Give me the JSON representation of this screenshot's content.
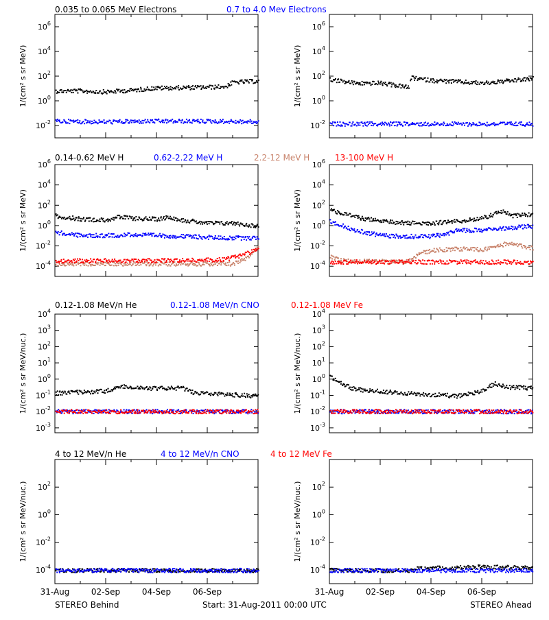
{
  "colors": {
    "black": "#000000",
    "blue": "#0000ff",
    "tan": "#c8826a",
    "red": "#ff0000"
  },
  "legends": {
    "row1": [
      {
        "text": "0.035 to 0.065 MeV Electrons",
        "color": "#000000"
      },
      {
        "text": "0.7 to 4.0 Mev Electrons",
        "color": "#0000ff"
      }
    ],
    "row2": [
      {
        "text": "0.14-0.62 MeV H",
        "color": "#000000"
      },
      {
        "text": "0.62-2.22 MeV H",
        "color": "#0000ff"
      },
      {
        "text": "2.2-12 MeV H",
        "color": "#c8826a"
      },
      {
        "text": "13-100 MeV H",
        "color": "#ff0000"
      }
    ],
    "row3": [
      {
        "text": "0.12-1.08 MeV/n He",
        "color": "#000000"
      },
      {
        "text": "0.12-1.08 MeV/n CNO",
        "color": "#0000ff"
      },
      {
        "text": "0.12-1.08 MeV Fe",
        "color": "#ff0000"
      }
    ],
    "row4": [
      {
        "text": "4 to 12 MeV/n He",
        "color": "#000000"
      },
      {
        "text": "4 to 12 MeV/n CNO",
        "color": "#0000ff"
      },
      {
        "text": "4 to 12 MeV Fe",
        "color": "#ff0000"
      }
    ]
  },
  "ylabels": {
    "row1": "1/(cm² s sr MeV)",
    "row2": "1/(cm² s sr MeV)",
    "row3": "1/(cm² s sr MeV/nuc.)",
    "row4": "1/(cm² s sr MeV/nuc.)"
  },
  "x_tick_labels": [
    "31-Aug",
    "02-Sep",
    "04-Sep",
    "06-Sep"
  ],
  "footer": {
    "left": "STEREO Behind",
    "center": "Start: 31-Aug-2011 00:00 UTC",
    "right": "STEREO Ahead"
  },
  "chart_data": [
    {
      "id": "r1-behind",
      "type": "scatter",
      "log_y": true,
      "ylim": [
        0.001,
        10000000
      ],
      "y_ticks": [
        {
          "v": 1000000,
          "b": "10",
          "e": "6"
        },
        {
          "v": 10000,
          "b": "10",
          "e": "4"
        },
        {
          "v": 100,
          "b": "10",
          "e": "2"
        },
        {
          "v": 1,
          "b": "10",
          "e": "0"
        },
        {
          "v": 0.01,
          "b": "10",
          "e": "-2"
        }
      ],
      "x_range_days": [
        0,
        8
      ],
      "series": [
        {
          "name": "0.035 to 0.065 MeV Electrons",
          "color": "#000000",
          "points": [
            [
              0,
              7
            ],
            [
              1,
              7
            ],
            [
              2,
              6
            ],
            [
              3,
              8
            ],
            [
              3.9,
              12
            ],
            [
              5,
              13
            ],
            [
              6,
              14
            ],
            [
              6.7,
              16
            ],
            [
              7,
              35
            ],
            [
              8,
              45
            ]
          ]
        },
        {
          "name": "0.7 to 4.0 Mev Electrons",
          "color": "#0000ff",
          "points": [
            [
              0,
              0.025
            ],
            [
              2,
              0.022
            ],
            [
              4,
              0.025
            ],
            [
              6,
              0.025
            ],
            [
              8,
              0.022
            ]
          ]
        }
      ]
    },
    {
      "id": "r1-ahead",
      "type": "scatter",
      "log_y": true,
      "ylim": [
        0.001,
        10000000
      ],
      "y_ticks": [
        {
          "v": 1000000,
          "b": "10",
          "e": "6"
        },
        {
          "v": 10000,
          "b": "10",
          "e": "4"
        },
        {
          "v": 100,
          "b": "10",
          "e": "2"
        },
        {
          "v": 1,
          "b": "10",
          "e": "0"
        },
        {
          "v": 0.01,
          "b": "10",
          "e": "-2"
        }
      ],
      "x_range_days": [
        0,
        8
      ],
      "series": [
        {
          "name": "0.035 to 0.065 MeV Electrons",
          "color": "#000000",
          "points": [
            [
              0,
              60
            ],
            [
              1,
              30
            ],
            [
              2,
              30
            ],
            [
              3,
              15
            ],
            [
              3.1,
              12
            ],
            [
              3.2,
              80
            ],
            [
              4,
              50
            ],
            [
              5,
              40
            ],
            [
              6,
              30
            ],
            [
              7,
              45
            ],
            [
              8,
              70
            ]
          ]
        },
        {
          "name": "0.7 to 4.0 Mev Electrons",
          "color": "#0000ff",
          "points": [
            [
              0,
              0.015
            ],
            [
              2,
              0.015
            ],
            [
              4,
              0.015
            ],
            [
              6,
              0.015
            ],
            [
              8,
              0.015
            ]
          ]
        }
      ]
    },
    {
      "id": "r2-behind",
      "type": "scatter",
      "log_y": true,
      "ylim": [
        1e-05,
        1000000
      ],
      "y_ticks": [
        {
          "v": 1000000,
          "b": "10",
          "e": "6"
        },
        {
          "v": 10000,
          "b": "10",
          "e": "4"
        },
        {
          "v": 100,
          "b": "10",
          "e": "2"
        },
        {
          "v": 1,
          "b": "10",
          "e": "0"
        },
        {
          "v": 0.01,
          "b": "10",
          "e": "-2"
        },
        {
          "v": 0.0001,
          "b": "10",
          "e": "-4"
        }
      ],
      "x_range_days": [
        0,
        8
      ],
      "series": [
        {
          "name": "0.14-0.62 MeV H",
          "color": "#000000",
          "points": [
            [
              0,
              10
            ],
            [
              1,
              5
            ],
            [
              2,
              4
            ],
            [
              2.5,
              8
            ],
            [
              3,
              6
            ],
            [
              4,
              5
            ],
            [
              4.5,
              8
            ],
            [
              5,
              4
            ],
            [
              6,
              2
            ],
            [
              7,
              2
            ],
            [
              8,
              1
            ]
          ]
        },
        {
          "name": "0.62-2.22 MeV H",
          "color": "#0000ff",
          "points": [
            [
              0,
              0.25
            ],
            [
              1,
              0.12
            ],
            [
              2,
              0.12
            ],
            [
              3,
              0.15
            ],
            [
              4,
              0.12
            ],
            [
              5,
              0.1
            ],
            [
              6,
              0.08
            ],
            [
              7,
              0.07
            ],
            [
              8,
              0.07
            ]
          ]
        },
        {
          "name": "2.2-12 MeV H",
          "color": "#c8826a",
          "points": [
            [
              0,
              0.0002
            ],
            [
              4,
              0.0002
            ],
            [
              7,
              0.0002
            ],
            [
              7.5,
              0.0006
            ],
            [
              8,
              0.01
            ]
          ]
        },
        {
          "name": "13-100 MeV H",
          "color": "#ff0000",
          "points": [
            [
              0,
              0.0004
            ],
            [
              4,
              0.0004
            ],
            [
              6.5,
              0.0005
            ],
            [
              7,
              0.0008
            ],
            [
              7.5,
              0.002
            ],
            [
              8,
              0.006
            ]
          ]
        }
      ]
    },
    {
      "id": "r2-ahead",
      "type": "scatter",
      "log_y": true,
      "ylim": [
        1e-05,
        1000000
      ],
      "y_ticks": [
        {
          "v": 1000000,
          "b": "10",
          "e": "6"
        },
        {
          "v": 10000,
          "b": "10",
          "e": "4"
        },
        {
          "v": 100,
          "b": "10",
          "e": "2"
        },
        {
          "v": 1,
          "b": "10",
          "e": "0"
        },
        {
          "v": 0.01,
          "b": "10",
          "e": "-2"
        },
        {
          "v": 0.0001,
          "b": "10",
          "e": "-4"
        }
      ],
      "x_range_days": [
        0,
        8
      ],
      "series": [
        {
          "name": "0.14-0.62 MeV H",
          "color": "#000000",
          "points": [
            [
              0,
              40
            ],
            [
              1,
              8
            ],
            [
              2,
              3
            ],
            [
              3,
              2
            ],
            [
              4,
              2
            ],
            [
              5,
              3
            ],
            [
              6,
              6
            ],
            [
              6.8,
              30
            ],
            [
              7.2,
              10
            ],
            [
              8,
              15
            ]
          ]
        },
        {
          "name": "0.62-2.22 MeV H",
          "color": "#0000ff",
          "points": [
            [
              0,
              3
            ],
            [
              1,
              0.4
            ],
            [
              2,
              0.12
            ],
            [
              3,
              0.1
            ],
            [
              4,
              0.1
            ],
            [
              4.5,
              0.15
            ],
            [
              5,
              0.4
            ],
            [
              6,
              0.4
            ],
            [
              7,
              0.7
            ],
            [
              8,
              1
            ]
          ]
        },
        {
          "name": "2.2-12 MeV H",
          "color": "#c8826a",
          "points": [
            [
              0,
              0.001
            ],
            [
              0.5,
              0.0004
            ],
            [
              3,
              0.0003
            ],
            [
              3.2,
              0.0005
            ],
            [
              3.5,
              0.002
            ],
            [
              4,
              0.004
            ],
            [
              5,
              0.006
            ],
            [
              6,
              0.005
            ],
            [
              7,
              0.02
            ],
            [
              8,
              0.007
            ]
          ]
        },
        {
          "name": "13-100 MeV H",
          "color": "#ff0000",
          "points": [
            [
              0,
              0.0003
            ],
            [
              4,
              0.0003
            ],
            [
              8,
              0.0003
            ]
          ]
        }
      ]
    },
    {
      "id": "r3-behind",
      "type": "scatter",
      "log_y": true,
      "ylim": [
        0.0005,
        10000
      ],
      "y_ticks": [
        {
          "v": 10000,
          "b": "10",
          "e": "4"
        },
        {
          "v": 1000,
          "b": "10",
          "e": "3"
        },
        {
          "v": 100,
          "b": "10",
          "e": "2"
        },
        {
          "v": 10,
          "b": "10",
          "e": "1"
        },
        {
          "v": 1,
          "b": "10",
          "e": "0"
        },
        {
          "v": 0.1,
          "b": "10",
          "e": "-1"
        },
        {
          "v": 0.01,
          "b": "10",
          "e": "-2"
        },
        {
          "v": 0.001,
          "b": "10",
          "e": "-3"
        }
      ],
      "x_range_days": [
        0,
        8
      ],
      "series": [
        {
          "name": "0.12-1.08 MeV/n He",
          "color": "#000000",
          "points": [
            [
              0,
              0.15
            ],
            [
              2,
              0.2
            ],
            [
              2.5,
              0.4
            ],
            [
              3.5,
              0.3
            ],
            [
              5,
              0.3
            ],
            [
              5.5,
              0.15
            ],
            [
              8,
              0.1
            ]
          ]
        },
        {
          "name": "0.12-1.08 MeV/n CNO",
          "color": "#0000ff",
          "points": [
            [
              0,
              0.011
            ],
            [
              8,
              0.011
            ]
          ]
        },
        {
          "name": "0.12-1.08 MeV Fe",
          "color": "#ff0000",
          "points": [
            [
              0,
              0.011
            ],
            [
              8,
              0.011
            ]
          ]
        }
      ]
    },
    {
      "id": "r3-ahead",
      "type": "scatter",
      "log_y": true,
      "ylim": [
        0.0005,
        10000
      ],
      "y_ticks": [
        {
          "v": 10000,
          "b": "10",
          "e": "4"
        },
        {
          "v": 1000,
          "b": "10",
          "e": "3"
        },
        {
          "v": 100,
          "b": "10",
          "e": "2"
        },
        {
          "v": 10,
          "b": "10",
          "e": "1"
        },
        {
          "v": 1,
          "b": "10",
          "e": "0"
        },
        {
          "v": 0.1,
          "b": "10",
          "e": "-1"
        },
        {
          "v": 0.01,
          "b": "10",
          "e": "-2"
        },
        {
          "v": 0.001,
          "b": "10",
          "e": "-3"
        }
      ],
      "x_range_days": [
        0,
        8
      ],
      "series": [
        {
          "name": "0.12-1.08 MeV/n He",
          "color": "#000000",
          "points": [
            [
              0,
              1.5
            ],
            [
              0.5,
              0.5
            ],
            [
              1,
              0.25
            ],
            [
              3,
              0.15
            ],
            [
              5,
              0.1
            ],
            [
              6,
              0.2
            ],
            [
              6.5,
              0.6
            ],
            [
              7,
              0.35
            ],
            [
              8,
              0.3
            ]
          ]
        },
        {
          "name": "0.12-1.08 MeV/n CNO",
          "color": "#0000ff",
          "points": [
            [
              0,
              0.011
            ],
            [
              8,
              0.011
            ]
          ]
        },
        {
          "name": "0.12-1.08 MeV Fe",
          "color": "#ff0000",
          "points": [
            [
              0,
              0.011
            ],
            [
              8,
              0.011
            ]
          ]
        }
      ]
    },
    {
      "id": "r4-behind",
      "type": "scatter",
      "log_y": true,
      "ylim": [
        1e-05,
        10000
      ],
      "y_ticks": [
        {
          "v": 100,
          "b": "10",
          "e": "2"
        },
        {
          "v": 1,
          "b": "10",
          "e": "0"
        },
        {
          "v": 0.01,
          "b": "10",
          "e": "-2"
        },
        {
          "v": 0.0001,
          "b": "10",
          "e": "-4"
        }
      ],
      "x_range_days": [
        0,
        8
      ],
      "series": [
        {
          "name": "4 to 12 MeV/n He",
          "color": "#000000",
          "points": [
            [
              0,
              0.0001
            ],
            [
              8,
              0.0001
            ]
          ]
        },
        {
          "name": "4 to 12 MeV/n CNO",
          "color": "#0000ff",
          "points": [
            [
              0,
              0.0001
            ],
            [
              8,
              0.0001
            ]
          ]
        }
      ]
    },
    {
      "id": "r4-ahead",
      "type": "scatter",
      "log_y": true,
      "ylim": [
        1e-05,
        10000
      ],
      "y_ticks": [
        {
          "v": 100,
          "b": "10",
          "e": "2"
        },
        {
          "v": 1,
          "b": "10",
          "e": "0"
        },
        {
          "v": 0.01,
          "b": "10",
          "e": "-2"
        },
        {
          "v": 0.0001,
          "b": "10",
          "e": "-4"
        }
      ],
      "x_range_days": [
        0,
        8
      ],
      "series": [
        {
          "name": "4 to 12 MeV/n He",
          "color": "#000000",
          "points": [
            [
              0,
              0.0001
            ],
            [
              3.3,
              0.0001
            ],
            [
              3.3,
              0.00013
            ],
            [
              6,
              0.00018
            ],
            [
              8,
              0.00015
            ]
          ]
        },
        {
          "name": "4 to 12 MeV/n CNO",
          "color": "#0000ff",
          "points": [
            [
              0,
              0.0001
            ],
            [
              8,
              0.0001
            ]
          ]
        }
      ]
    }
  ]
}
